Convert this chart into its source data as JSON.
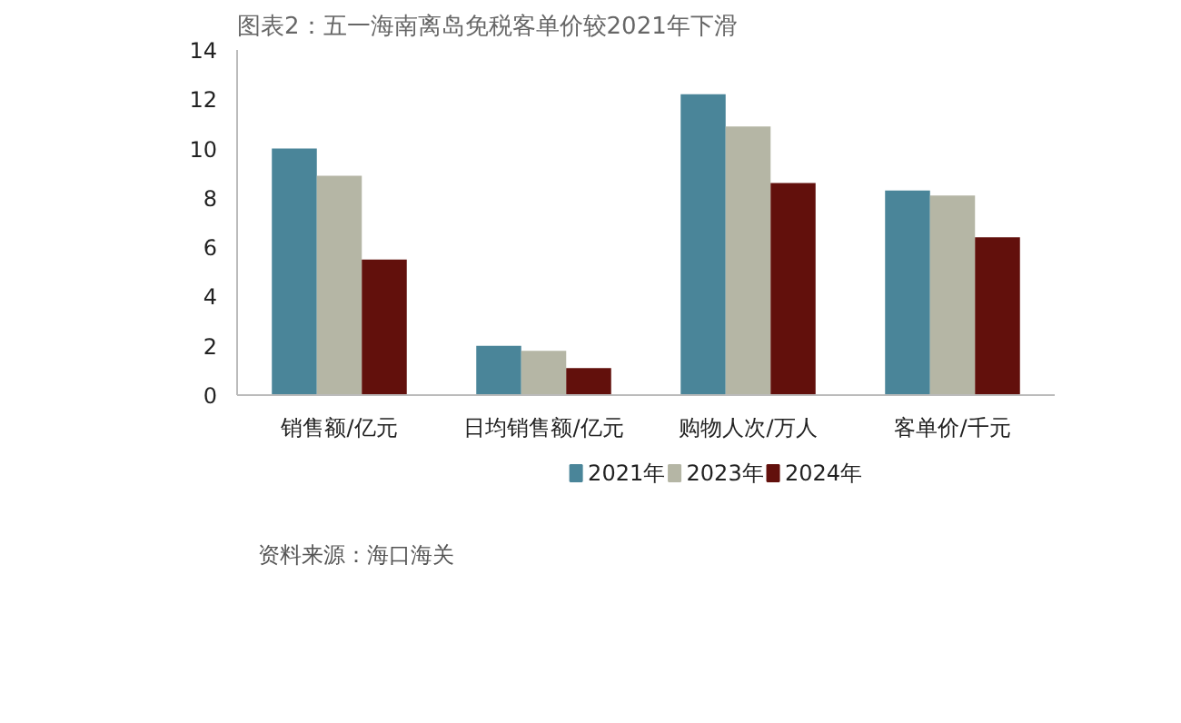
{
  "chart_data": {
    "type": "bar",
    "title": "图表2：五一海南离岛免税客单价较2021年下滑",
    "categories": [
      "销售额/亿元",
      "日均销售额/亿元",
      "购物人次/万人",
      "客单价/千元"
    ],
    "series": [
      {
        "name": "2021年",
        "color": "#4a8599",
        "values": [
          10.0,
          2.0,
          12.2,
          8.3
        ]
      },
      {
        "name": "2023年",
        "color": "#b5b6a5",
        "values": [
          8.9,
          1.8,
          10.9,
          8.1
        ]
      },
      {
        "name": "2024年",
        "color": "#62100c",
        "values": [
          5.5,
          1.1,
          8.6,
          6.4
        ]
      }
    ],
    "ylim": [
      0,
      14
    ],
    "yticks": [
      0,
      2,
      4,
      6,
      8,
      10,
      12,
      14
    ],
    "grid": false,
    "legend": "bottom",
    "annotations": [
      "资料来源：海口海关"
    ]
  }
}
